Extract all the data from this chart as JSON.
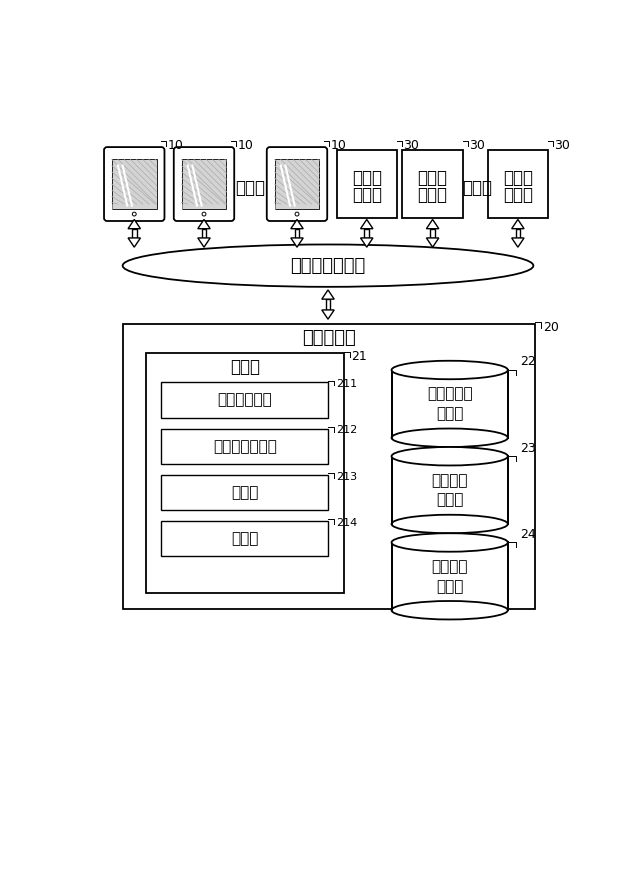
{
  "bg_color": "#ffffff",
  "line_color": "#000000",
  "tablet_ref": "10",
  "server_ref": "30",
  "internet_label": "インターネット",
  "mgmt_server_label": "管理サーバ",
  "mgmt_server_ref": "20",
  "control_unit_label": "制御部",
  "control_unit_ref": "21",
  "sub_boxes": [
    {
      "label": "ユーザ管理部",
      "ref": "211"
    },
    {
      "label": "カレンダ管理部",
      "ref": "212"
    },
    {
      "label": "通知部",
      "ref": "213"
    },
    {
      "label": "同期部",
      "ref": "214"
    }
  ],
  "db_labels": [
    {
      "label": "ユーザ情報\n記憶部",
      "ref": "22"
    },
    {
      "label": "カレンダ\n記憶部",
      "ref": "23"
    },
    {
      "label": "イベント\n記憶部",
      "ref": "24"
    }
  ]
}
